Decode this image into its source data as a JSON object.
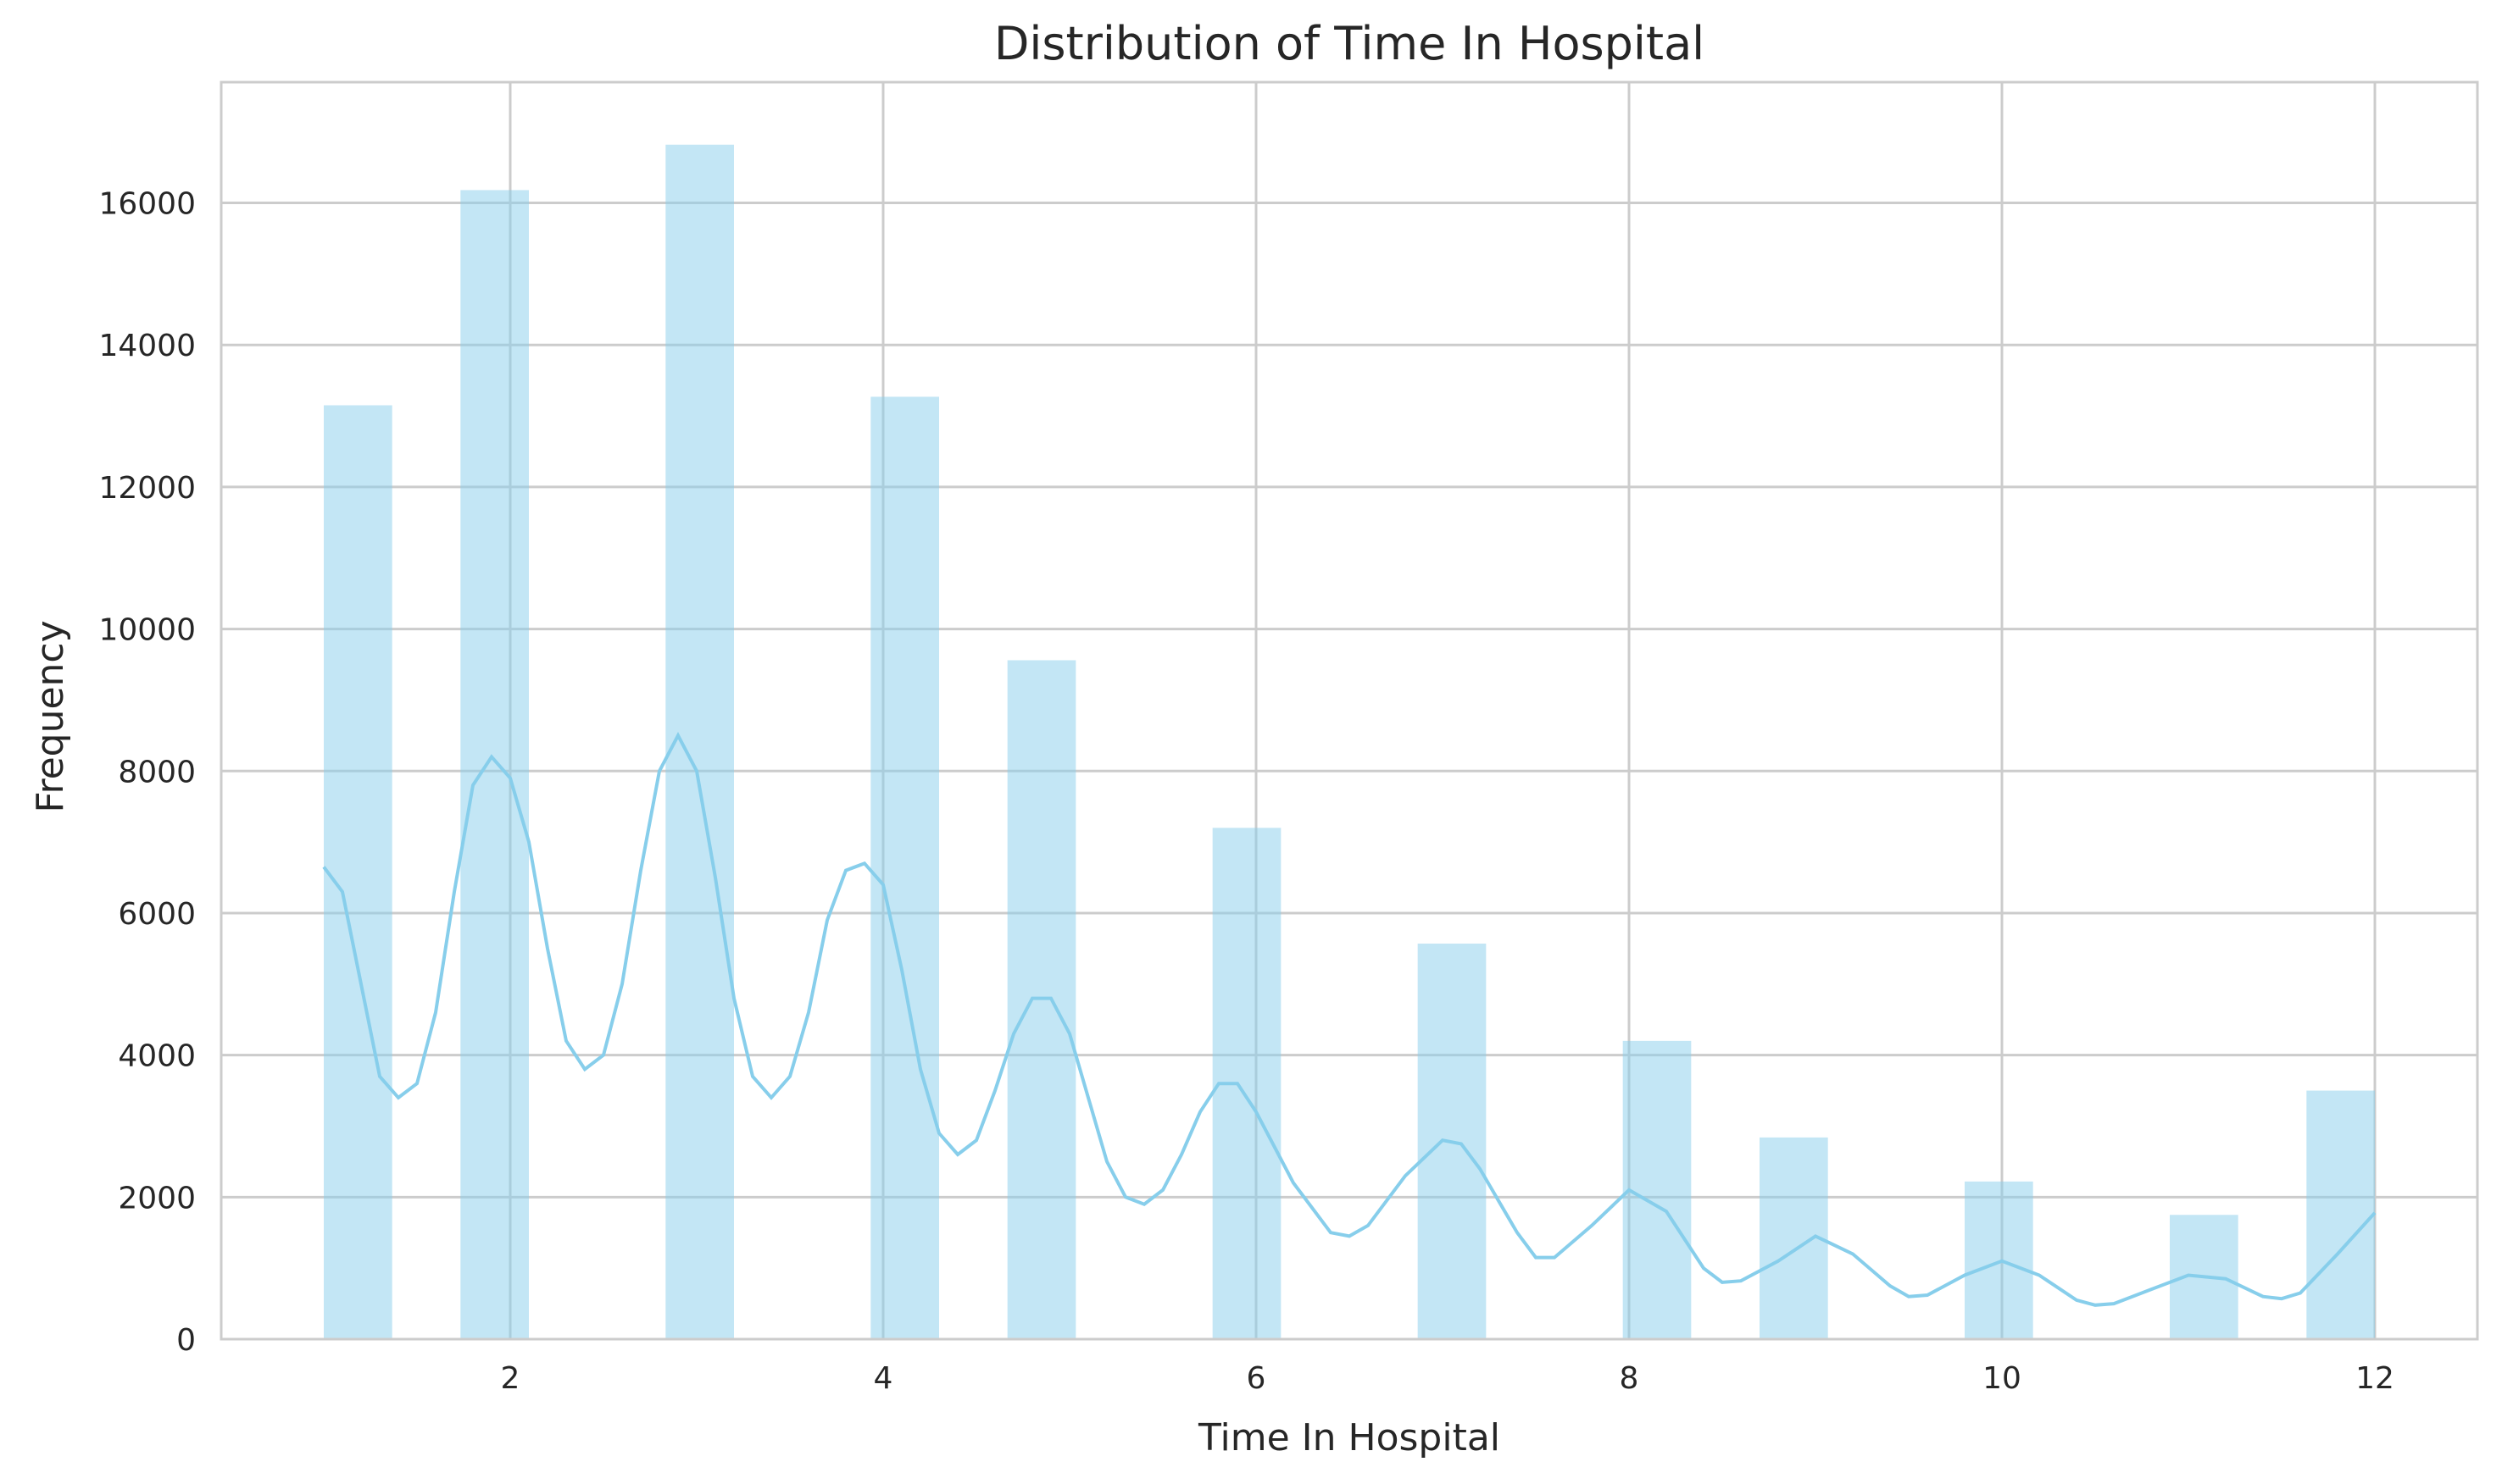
{
  "chart_data": {
    "type": "bar",
    "title": "Distribution of Time In Hospital",
    "xlabel": "Time In Hospital",
    "ylabel": "Frequency",
    "xlim": [
      0.45,
      12.55
    ],
    "ylim": [
      0,
      17700
    ],
    "x_ticks": [
      2,
      4,
      6,
      8,
      10,
      12
    ],
    "y_ticks": [
      0,
      2000,
      4000,
      6000,
      8000,
      10000,
      12000,
      14000,
      16000
    ],
    "grid": true,
    "bar_color": "#87ceeb",
    "line_color": "#87ceeb",
    "bins": [
      {
        "x0": 1.0,
        "x1": 1.3667,
        "value": 13150
      },
      {
        "x0": 1.7333,
        "x1": 2.1,
        "value": 16180
      },
      {
        "x0": 2.8333,
        "x1": 3.2,
        "value": 16820
      },
      {
        "x0": 3.9333,
        "x1": 4.3,
        "value": 13270
      },
      {
        "x0": 4.6667,
        "x1": 5.0333,
        "value": 9560
      },
      {
        "x0": 5.7667,
        "x1": 6.1333,
        "value": 7200
      },
      {
        "x0": 6.8667,
        "x1": 7.2333,
        "value": 5570
      },
      {
        "x0": 7.9667,
        "x1": 8.3333,
        "value": 4200
      },
      {
        "x0": 8.7,
        "x1": 9.0667,
        "value": 2840
      },
      {
        "x0": 9.8,
        "x1": 10.1667,
        "value": 2220
      },
      {
        "x0": 10.9,
        "x1": 11.2667,
        "value": 1750
      },
      {
        "x0": 11.6333,
        "x1": 12.0,
        "value": 3500
      }
    ],
    "kde": {
      "x": [
        1.0,
        1.1,
        1.2,
        1.3,
        1.4,
        1.5,
        1.6,
        1.7,
        1.8,
        1.9,
        2.0,
        2.1,
        2.2,
        2.3,
        2.4,
        2.5,
        2.6,
        2.7,
        2.8,
        2.9,
        3.0,
        3.1,
        3.2,
        3.3,
        3.4,
        3.5,
        3.6,
        3.7,
        3.8,
        3.9,
        4.0,
        4.1,
        4.2,
        4.3,
        4.4,
        4.5,
        4.6,
        4.7,
        4.8,
        4.9,
        5.0,
        5.1,
        5.2,
        5.3,
        5.4,
        5.5,
        5.6,
        5.7,
        5.8,
        5.9,
        6.0,
        6.2,
        6.4,
        6.5,
        6.6,
        6.8,
        7.0,
        7.1,
        7.2,
        7.4,
        7.5,
        7.6,
        7.8,
        8.0,
        8.2,
        8.4,
        8.5,
        8.6,
        8.8,
        9.0,
        9.2,
        9.4,
        9.5,
        9.6,
        9.8,
        10.0,
        10.2,
        10.4,
        10.5,
        10.6,
        10.8,
        11.0,
        11.2,
        11.4,
        11.5,
        11.6,
        11.8,
        12.0
      ],
      "y": [
        6650,
        6300,
        5000,
        3700,
        3400,
        3600,
        4600,
        6300,
        7800,
        8200,
        7900,
        7000,
        5500,
        4200,
        3800,
        4000,
        5000,
        6600,
        8000,
        8500,
        8000,
        6500,
        4800,
        3700,
        3400,
        3700,
        4600,
        5900,
        6600,
        6700,
        6400,
        5200,
        3800,
        2900,
        2600,
        2800,
        3500,
        4300,
        4800,
        4800,
        4300,
        3400,
        2500,
        2000,
        1900,
        2100,
        2600,
        3200,
        3600,
        3600,
        3200,
        2200,
        1500,
        1450,
        1600,
        2300,
        2800,
        2750,
        2400,
        1500,
        1150,
        1150,
        1600,
        2100,
        1800,
        1000,
        800,
        820,
        1100,
        1450,
        1200,
        750,
        600,
        620,
        900,
        1100,
        900,
        550,
        480,
        500,
        700,
        900,
        850,
        600,
        570,
        650,
        1200,
        1780
      ]
    }
  }
}
